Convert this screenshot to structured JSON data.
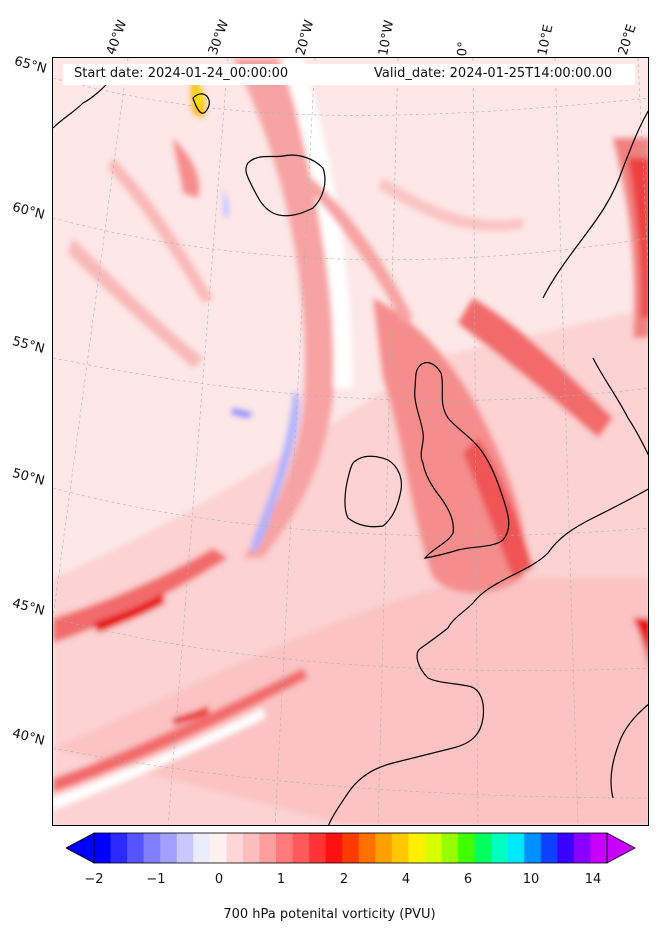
{
  "header": {
    "start_date": "Start date: 2024-01-24_00:00:00",
    "valid_date": "Valid_date: 2024-01-25T14:00:00.00"
  },
  "lon_labels": [
    "40°W",
    "30°W",
    "20°W",
    "10°W",
    "0°",
    "10°E",
    "20°E"
  ],
  "lat_labels": [
    "65°N",
    "60°N",
    "55°N",
    "50°N",
    "45°N",
    "40°N"
  ],
  "colorbar": {
    "label": "700 hPa potenital vorticity (PVU)",
    "tick_labels": [
      "−2",
      "−1",
      "0",
      "1",
      "2",
      "4",
      "6",
      "10",
      "14"
    ],
    "colors": [
      "#0000ff",
      "#2b2bff",
      "#5555ff",
      "#7f7fff",
      "#a0a0ff",
      "#c8c8ff",
      "#ececff",
      "#fff0f0",
      "#ffd6d6",
      "#ffbcbc",
      "#ff9e9e",
      "#ff7a7a",
      "#ff5a5a",
      "#ff3333",
      "#ff1010",
      "#ff3a00",
      "#ff7200",
      "#ffa000",
      "#ffc800",
      "#fff000",
      "#d8ff00",
      "#98ff00",
      "#40ff00",
      "#00ff60",
      "#00ffc0",
      "#00e8ff",
      "#0090ff",
      "#1040ff",
      "#3a00ff",
      "#8a00ff",
      "#c800ff"
    ],
    "extend_low_color": "#0000ff",
    "extend_high_color": "#c800ff"
  }
}
